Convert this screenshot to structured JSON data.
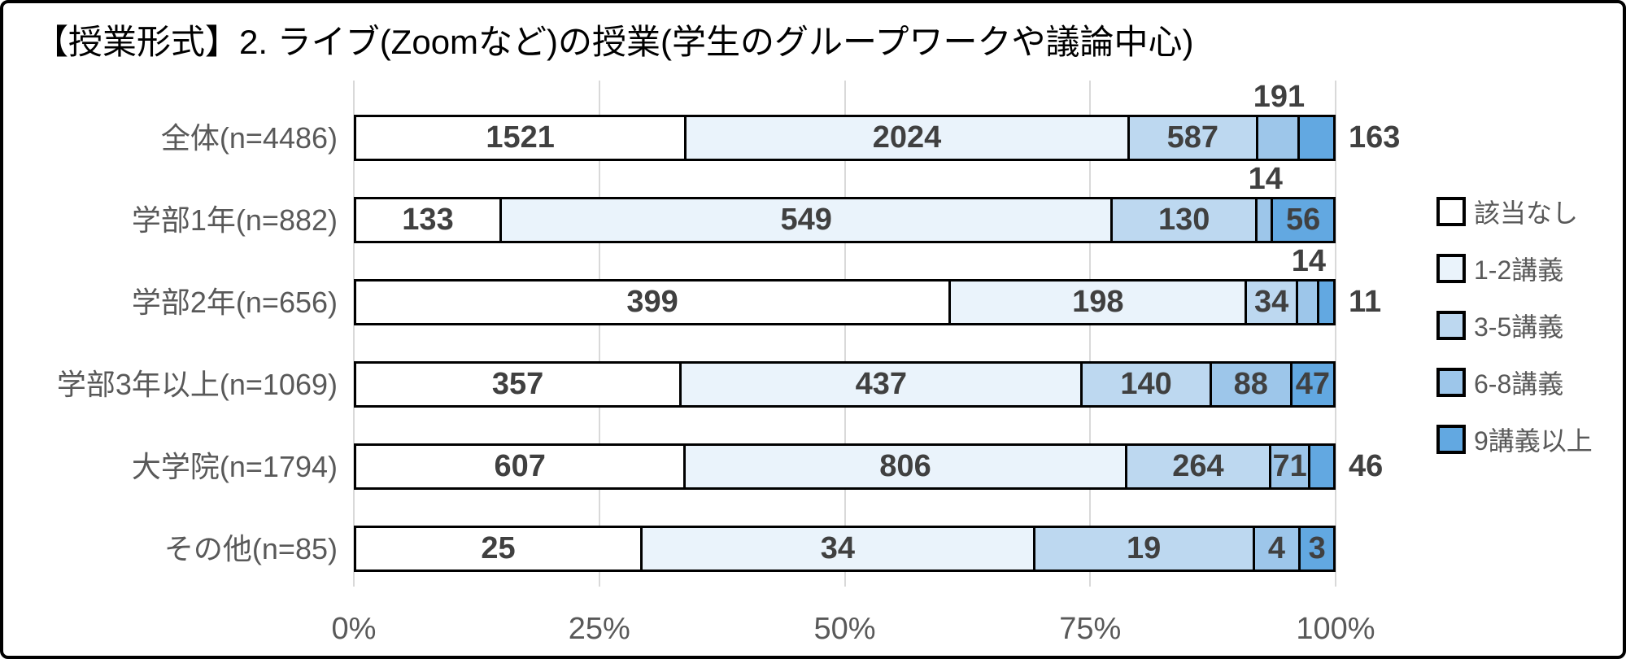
{
  "title": "【授業形式】2. ライブ(Zoomなど)の授業(学生のグループワークや議論中心)",
  "colors": {
    "grid": "#d9d9d9",
    "bar_border": "#000000",
    "value_text": "#404040",
    "axis_text": "#595959",
    "frame_border": "#000000"
  },
  "chart_data": {
    "type": "bar",
    "orientation": "horizontal",
    "stacked": true,
    "percent_stacked": true,
    "grid": true,
    "legend_position": "right",
    "title": "【授業形式】2. ライブ(Zoomなど)の授業(学生のグループワークや議論中心)",
    "categories": [
      "全体(n=4486)",
      "学部1年(n=882)",
      "学部2年(n=656)",
      "学部3年以上(n=1069)",
      "大学院(n=1794)",
      "その他(n=85)"
    ],
    "series": [
      {
        "name": "該当なし",
        "color": "#ffffff",
        "values": [
          1521,
          133,
          399,
          357,
          607,
          25
        ]
      },
      {
        "name": "1-2講義",
        "color": "#eaf3fb",
        "values": [
          2024,
          549,
          198,
          437,
          806,
          34
        ]
      },
      {
        "name": "3-5講義",
        "color": "#bdd8f0",
        "values": [
          587,
          130,
          34,
          140,
          264,
          19
        ]
      },
      {
        "name": "6-8講義",
        "color": "#9dc6ea",
        "values": [
          191,
          14,
          14,
          88,
          71,
          4
        ]
      },
      {
        "name": "9講義以上",
        "color": "#62a8e1",
        "values": [
          163,
          56,
          11,
          47,
          46,
          3
        ]
      }
    ],
    "value_label_positions": [
      [
        "inside",
        "inside",
        "inside",
        "above",
        "right"
      ],
      [
        "inside",
        "inside",
        "inside",
        "above",
        "inside"
      ],
      [
        "inside",
        "inside",
        "inside",
        "above",
        "right"
      ],
      [
        "inside",
        "inside",
        "inside",
        "inside",
        "inside"
      ],
      [
        "inside",
        "inside",
        "inside",
        "inside",
        "right"
      ],
      [
        "inside",
        "inside",
        "inside",
        "inside",
        "inside"
      ]
    ],
    "x_ticks": [
      "0%",
      "25%",
      "50%",
      "75%",
      "100%"
    ],
    "xlim": [
      0,
      100
    ],
    "row_totals": [
      4486,
      882,
      656,
      1069,
      1794,
      85
    ]
  }
}
